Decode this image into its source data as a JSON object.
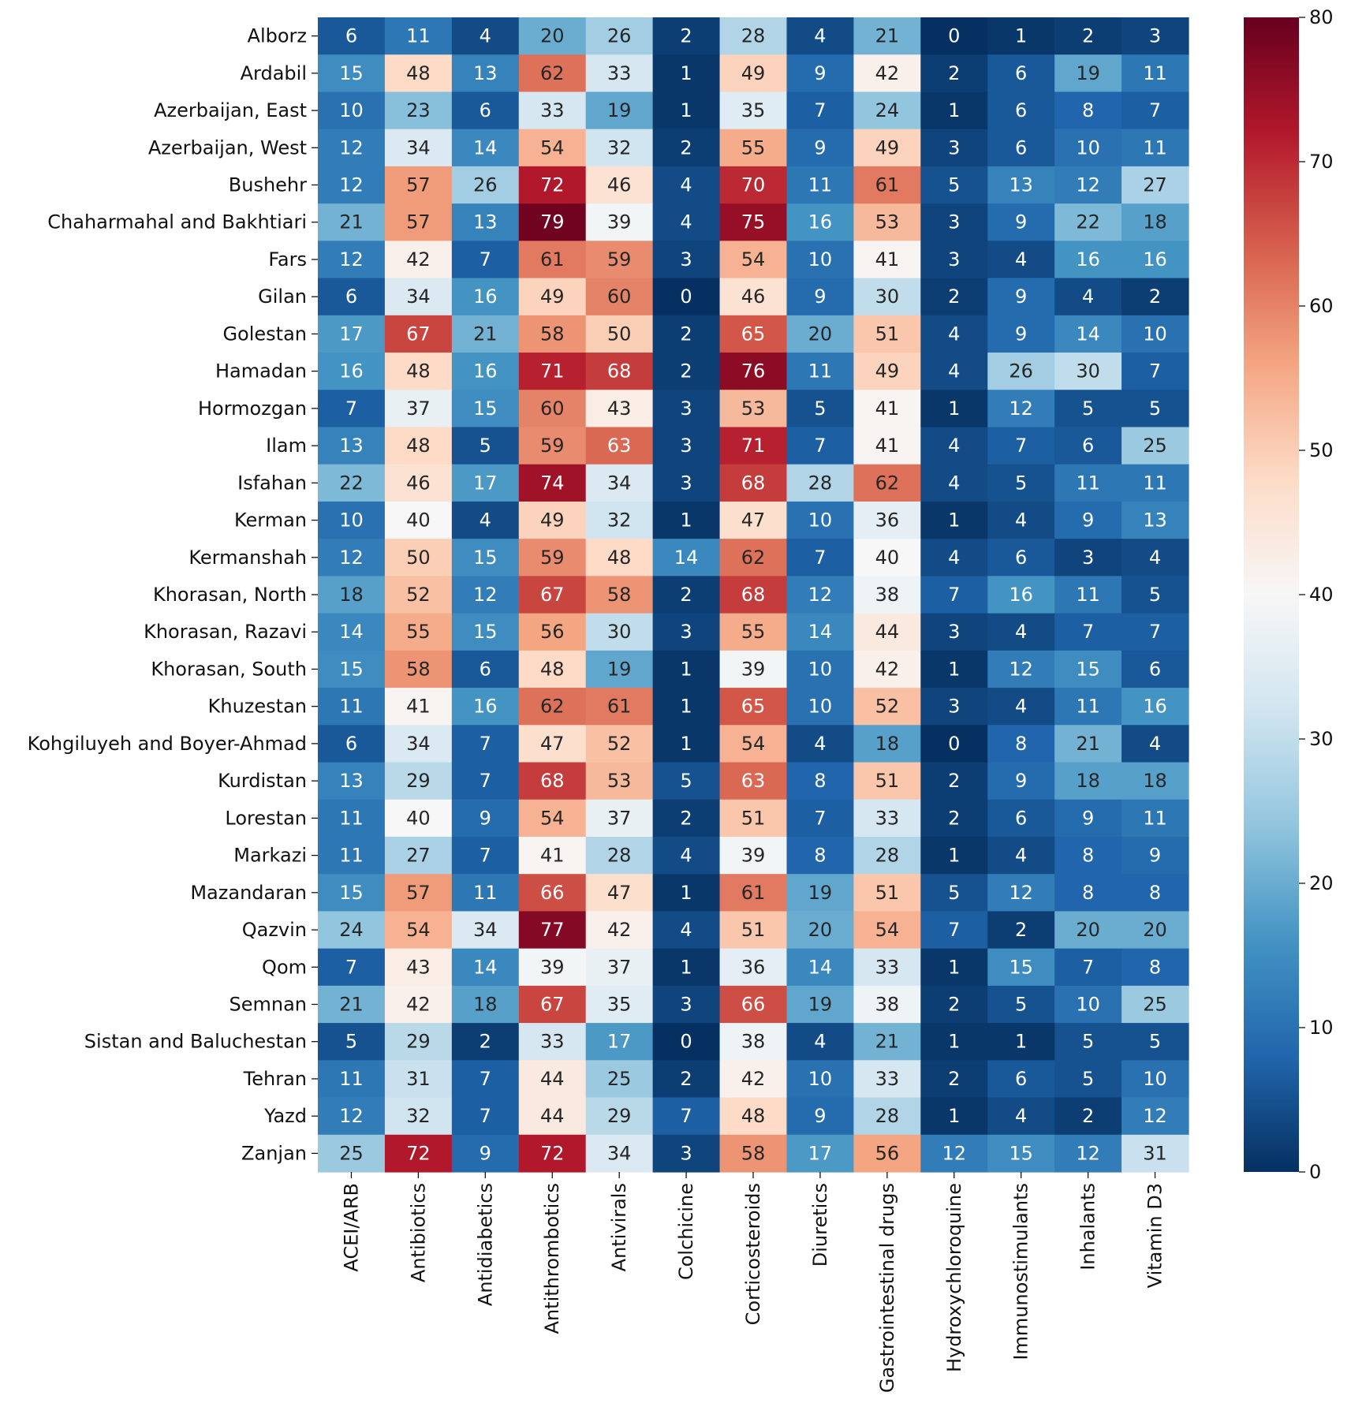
{
  "chart_data": {
    "type": "heatmap",
    "title": "",
    "xlabel": "",
    "ylabel": "",
    "colormap": "RdBu_r",
    "vmin": 0,
    "vmax": 80,
    "colorbar_ticks": [
      0,
      10,
      20,
      30,
      40,
      50,
      60,
      70,
      80
    ],
    "columns": [
      "ACEI/ARB",
      "Antibiotics",
      "Antidiabetics",
      "Antithrombotics",
      "Antivirals",
      "Colchicine",
      "Corticosteroids",
      "Diuretics",
      "Gastrointestinal drugs",
      "Hydroxychloroquine",
      "Immunostimulants",
      "Inhalants",
      "Vitamin D3"
    ],
    "rows": [
      "Alborz",
      "Ardabil",
      "Azerbaijan, East",
      "Azerbaijan, West",
      "Bushehr",
      "Chaharmahal and Bakhtiari",
      "Fars",
      "Gilan",
      "Golestan",
      "Hamadan",
      "Hormozgan",
      "Ilam",
      "Isfahan",
      "Kerman",
      "Kermanshah",
      "Khorasan, North",
      "Khorasan, Razavi",
      "Khorasan, South",
      "Khuzestan",
      "Kohgiluyeh and Boyer-Ahmad",
      "Kurdistan",
      "Lorestan",
      "Markazi",
      "Mazandaran",
      "Qazvin",
      "Qom",
      "Semnan",
      "Sistan and Baluchestan",
      "Tehran",
      "Yazd",
      "Zanjan"
    ],
    "values": [
      [
        6,
        11,
        4,
        20,
        26,
        2,
        28,
        4,
        21,
        0,
        1,
        2,
        3
      ],
      [
        15,
        48,
        13,
        62,
        33,
        1,
        49,
        9,
        42,
        2,
        6,
        19,
        11
      ],
      [
        10,
        23,
        6,
        33,
        19,
        1,
        35,
        7,
        24,
        1,
        6,
        8,
        7
      ],
      [
        12,
        34,
        14,
        54,
        32,
        2,
        55,
        9,
        49,
        3,
        6,
        10,
        11
      ],
      [
        12,
        57,
        26,
        72,
        46,
        4,
        70,
        11,
        61,
        5,
        13,
        12,
        27
      ],
      [
        21,
        57,
        13,
        79,
        39,
        4,
        75,
        16,
        53,
        3,
        9,
        22,
        18
      ],
      [
        12,
        42,
        7,
        61,
        59,
        3,
        54,
        10,
        41,
        3,
        4,
        16,
        16
      ],
      [
        6,
        34,
        16,
        49,
        60,
        0,
        46,
        9,
        30,
        2,
        9,
        4,
        2
      ],
      [
        17,
        67,
        21,
        58,
        50,
        2,
        65,
        20,
        51,
        4,
        9,
        14,
        10
      ],
      [
        16,
        48,
        16,
        71,
        68,
        2,
        76,
        11,
        49,
        4,
        26,
        30,
        7
      ],
      [
        7,
        37,
        15,
        60,
        43,
        3,
        53,
        5,
        41,
        1,
        12,
        5,
        5
      ],
      [
        13,
        48,
        5,
        59,
        63,
        3,
        71,
        7,
        41,
        4,
        7,
        6,
        25
      ],
      [
        22,
        46,
        17,
        74,
        34,
        3,
        68,
        28,
        62,
        4,
        5,
        11,
        11
      ],
      [
        10,
        40,
        4,
        49,
        32,
        1,
        47,
        10,
        36,
        1,
        4,
        9,
        13
      ],
      [
        12,
        50,
        15,
        59,
        48,
        14,
        62,
        7,
        40,
        4,
        6,
        3,
        4
      ],
      [
        18,
        52,
        12,
        67,
        58,
        2,
        68,
        12,
        38,
        7,
        16,
        11,
        5
      ],
      [
        14,
        55,
        15,
        56,
        30,
        3,
        55,
        14,
        44,
        3,
        4,
        7,
        7
      ],
      [
        15,
        58,
        6,
        48,
        19,
        1,
        39,
        10,
        42,
        1,
        12,
        15,
        6
      ],
      [
        11,
        41,
        16,
        62,
        61,
        1,
        65,
        10,
        52,
        3,
        4,
        11,
        16
      ],
      [
        6,
        34,
        7,
        47,
        52,
        1,
        54,
        4,
        18,
        0,
        8,
        21,
        4
      ],
      [
        13,
        29,
        7,
        68,
        53,
        5,
        63,
        8,
        51,
        2,
        9,
        18,
        18
      ],
      [
        11,
        40,
        9,
        54,
        37,
        2,
        51,
        7,
        33,
        2,
        6,
        9,
        11
      ],
      [
        11,
        27,
        7,
        41,
        28,
        4,
        39,
        8,
        28,
        1,
        4,
        8,
        9
      ],
      [
        15,
        57,
        11,
        66,
        47,
        1,
        61,
        19,
        51,
        5,
        12,
        8,
        8
      ],
      [
        24,
        54,
        34,
        77,
        42,
        4,
        51,
        20,
        54,
        7,
        2,
        20,
        20
      ],
      [
        7,
        43,
        14,
        39,
        37,
        1,
        36,
        14,
        33,
        1,
        15,
        7,
        8
      ],
      [
        21,
        42,
        18,
        67,
        35,
        3,
        66,
        19,
        38,
        2,
        5,
        10,
        25
      ],
      [
        5,
        29,
        2,
        33,
        17,
        0,
        38,
        4,
        21,
        1,
        1,
        5,
        5
      ],
      [
        11,
        31,
        7,
        44,
        25,
        2,
        42,
        10,
        33,
        2,
        6,
        5,
        10
      ],
      [
        12,
        32,
        7,
        44,
        29,
        7,
        48,
        9,
        28,
        1,
        4,
        2,
        12
      ],
      [
        25,
        72,
        9,
        72,
        34,
        3,
        58,
        17,
        56,
        12,
        15,
        12,
        31
      ]
    ]
  }
}
